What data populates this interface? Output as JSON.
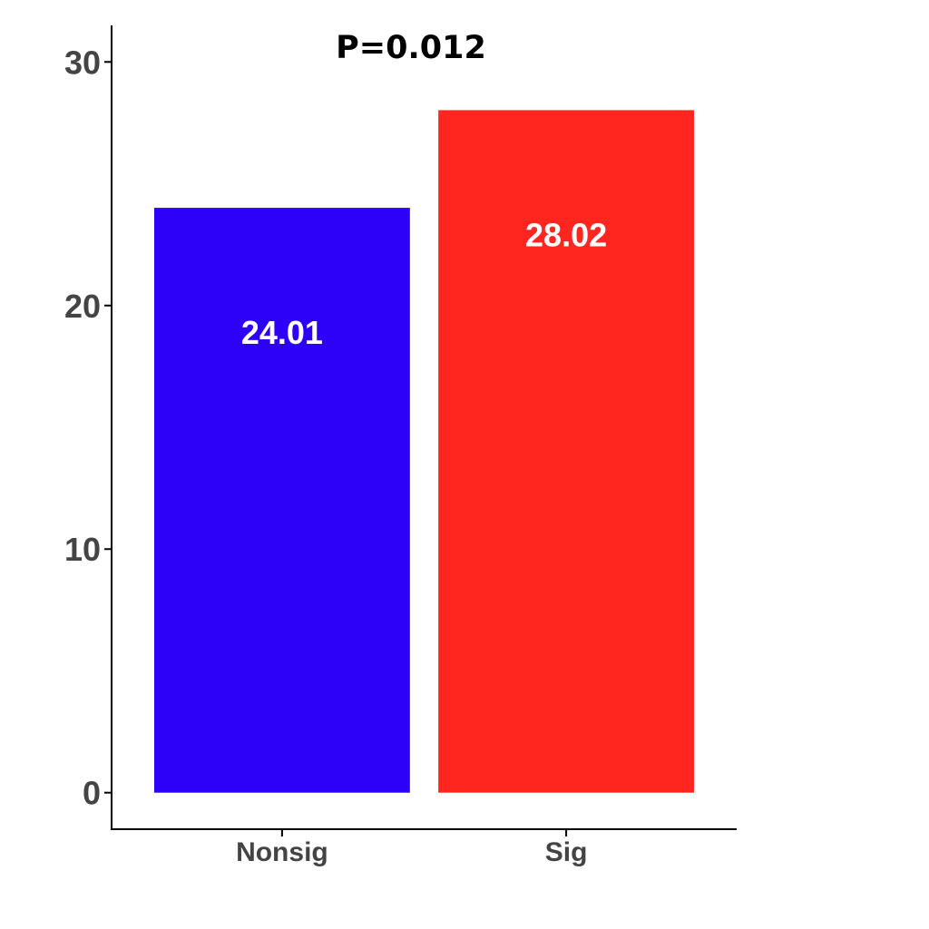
{
  "chart_data": {
    "type": "bar",
    "categories": [
      "Nonsig",
      "Sig"
    ],
    "values": [
      24.01,
      28.02
    ],
    "data_labels": [
      "24.01",
      "28.02"
    ],
    "colors": [
      "#2d00f7",
      "#ff2620"
    ],
    "annotation": "P=0.012",
    "title": "",
    "xlabel": "",
    "ylabel": "",
    "ylim": [
      -1.5,
      31.5
    ],
    "yticks": [
      0,
      10,
      20,
      30
    ],
    "grid": false,
    "legend": "none"
  }
}
